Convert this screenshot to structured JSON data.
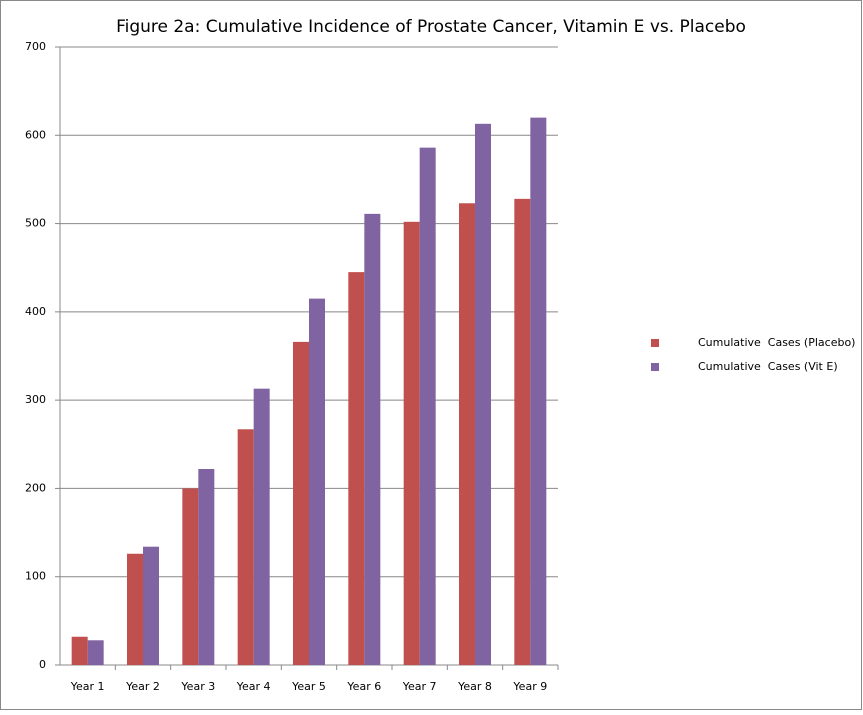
{
  "chart_data": {
    "type": "bar",
    "title": "Figure 2a: Cumulative Incidence of Prostate Cancer, Vitamin E vs. Placebo",
    "categories": [
      "Year 1",
      "Year 2",
      "Year 3",
      "Year 4",
      "Year 5",
      "Year 6",
      "Year 7",
      "Year 8",
      "Year 9"
    ],
    "series": [
      {
        "name": "Cumulative  Cases (Placebo)",
        "color": "#c0504d",
        "values": [
          32,
          126,
          200,
          267,
          366,
          445,
          502,
          523,
          528
        ]
      },
      {
        "name": "Cumulative  Cases (Vit E)",
        "color": "#8064a2",
        "values": [
          28,
          134,
          222,
          313,
          415,
          511,
          586,
          613,
          620
        ]
      }
    ],
    "ylim": [
      0,
      700
    ],
    "yticks": [
      0,
      100,
      200,
      300,
      400,
      500,
      600,
      700
    ],
    "grid": true,
    "legend": "right"
  }
}
